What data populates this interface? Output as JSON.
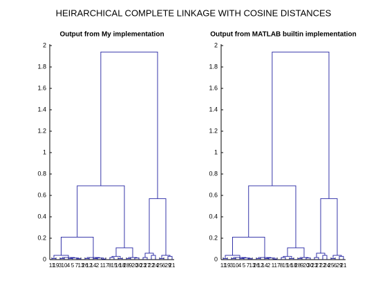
{
  "title": "HEIRARCHICAL COMPLETE LINKAGE WITH COSINE DISTANCES",
  "chart_data": [
    {
      "type": "dendrogram",
      "title": "Output from My implementation",
      "color": "#1f1fa0",
      "ylim": [
        0,
        2
      ],
      "yticks": [
        0,
        0.2,
        0.4,
        0.6,
        0.8,
        1,
        1.2,
        1.4,
        1.6,
        1.8,
        2
      ],
      "tree": {
        "height": 1.94,
        "children": [
          {
            "height": 0.69,
            "children": [
              {
                "height": 0.21,
                "children": [
                  {
                    "height": 0.04,
                    "children": [
                      {
                        "height": 0.01,
                        "children": [
                          "11",
                          "19"
                        ]
                      },
                      {
                        "height": 0.02,
                        "children": [
                          {
                            "height": 0.01,
                            "children": [
                              "3",
                              "10"
                            ]
                          },
                          {
                            "height": 0.015,
                            "children": [
                              {
                                "height": 0.01,
                                "children": [
                                  "4",
                                  "5"
                                ]
                              },
                              {
                                "height": 0.008,
                                "children": [
                                  "7",
                                  "13"
                                ]
                              }
                            ]
                          }
                        ]
                      }
                    ]
                  },
                  {
                    "height": 0.02,
                    "children": [
                      {
                        "height": 0.01,
                        "children": [
                          "26",
                          "12"
                        ]
                      },
                      {
                        "height": 0.015,
                        "children": [
                          {
                            "height": 0.01,
                            "children": [
                              "14",
                              "2"
                            ]
                          },
                          {
                            "height": 0.005,
                            "children": [
                              "1",
                              "17"
                            ]
                          }
                        ]
                      }
                    ]
                  }
                ]
              },
              {
                "height": 0.11,
                "children": [
                  {
                    "height": 0.03,
                    "children": [
                      {
                        "height": 0.02,
                        "children": [
                          "8",
                          "15"
                        ]
                      },
                      {
                        "height": 0.01,
                        "children": [
                          "16",
                          "18"
                        ]
                      }
                    ]
                  },
                  {
                    "height": 0.02,
                    "children": [
                      {
                        "height": 0.01,
                        "children": [
                          "28",
                          "9"
                        ]
                      },
                      {
                        "height": 0.015,
                        "children": [
                          "20",
                          "30"
                        ]
                      }
                    ]
                  }
                ]
              }
            ]
          },
          {
            "height": 0.57,
            "children": [
              {
                "height": 0.06,
                "children": [
                  {
                    "height": 0.02,
                    "children": [
                      "23",
                      "27"
                    ]
                  },
                  {
                    "height": 0.04,
                    "children": [
                      "22",
                      "24"
                    ]
                  }
                ]
              },
              {
                "height": 0.04,
                "children": [
                  {
                    "height": 0.01,
                    "children": [
                      "25",
                      "6"
                    ]
                  },
                  {
                    "height": 0.03,
                    "children": [
                      "29",
                      "21"
                    ]
                  }
                ]
              }
            ]
          }
        ]
      }
    },
    {
      "type": "dendrogram",
      "title": "Output from MATLAB builtin implementation",
      "color": "#1f1fa0",
      "ylim": [
        0,
        2
      ],
      "yticks": [
        0,
        0.2,
        0.4,
        0.6,
        0.8,
        1,
        1.2,
        1.4,
        1.6,
        1.8,
        2
      ],
      "tree": {
        "height": 1.94,
        "children": [
          {
            "height": 0.69,
            "children": [
              {
                "height": 0.21,
                "children": [
                  {
                    "height": 0.04,
                    "children": [
                      {
                        "height": 0.01,
                        "children": [
                          "11",
                          "19"
                        ]
                      },
                      {
                        "height": 0.02,
                        "children": [
                          {
                            "height": 0.01,
                            "children": [
                              "3",
                              "10"
                            ]
                          },
                          {
                            "height": 0.015,
                            "children": [
                              {
                                "height": 0.01,
                                "children": [
                                  "4",
                                  "5"
                                ]
                              },
                              {
                                "height": 0.008,
                                "children": [
                                  "7",
                                  "13"
                                ]
                              }
                            ]
                          }
                        ]
                      }
                    ]
                  },
                  {
                    "height": 0.02,
                    "children": [
                      {
                        "height": 0.01,
                        "children": [
                          "26",
                          "12"
                        ]
                      },
                      {
                        "height": 0.015,
                        "children": [
                          {
                            "height": 0.01,
                            "children": [
                              "14",
                              "2"
                            ]
                          },
                          {
                            "height": 0.005,
                            "children": [
                              "1",
                              "17"
                            ]
                          }
                        ]
                      }
                    ]
                  }
                ]
              },
              {
                "height": 0.11,
                "children": [
                  {
                    "height": 0.03,
                    "children": [
                      {
                        "height": 0.02,
                        "children": [
                          "8",
                          "15"
                        ]
                      },
                      {
                        "height": 0.01,
                        "children": [
                          "16",
                          "18"
                        ]
                      }
                    ]
                  },
                  {
                    "height": 0.02,
                    "children": [
                      {
                        "height": 0.01,
                        "children": [
                          "28",
                          "9"
                        ]
                      },
                      {
                        "height": 0.015,
                        "children": [
                          "20",
                          "30"
                        ]
                      }
                    ]
                  }
                ]
              }
            ]
          },
          {
            "height": 0.57,
            "children": [
              {
                "height": 0.06,
                "children": [
                  {
                    "height": 0.02,
                    "children": [
                      "23",
                      "27"
                    ]
                  },
                  {
                    "height": 0.04,
                    "children": [
                      "22",
                      "24"
                    ]
                  }
                ]
              },
              {
                "height": 0.04,
                "children": [
                  {
                    "height": 0.01,
                    "children": [
                      "25",
                      "6"
                    ]
                  },
                  {
                    "height": 0.03,
                    "children": [
                      "29",
                      "21"
                    ]
                  }
                ]
              }
            ]
          }
        ]
      }
    }
  ]
}
